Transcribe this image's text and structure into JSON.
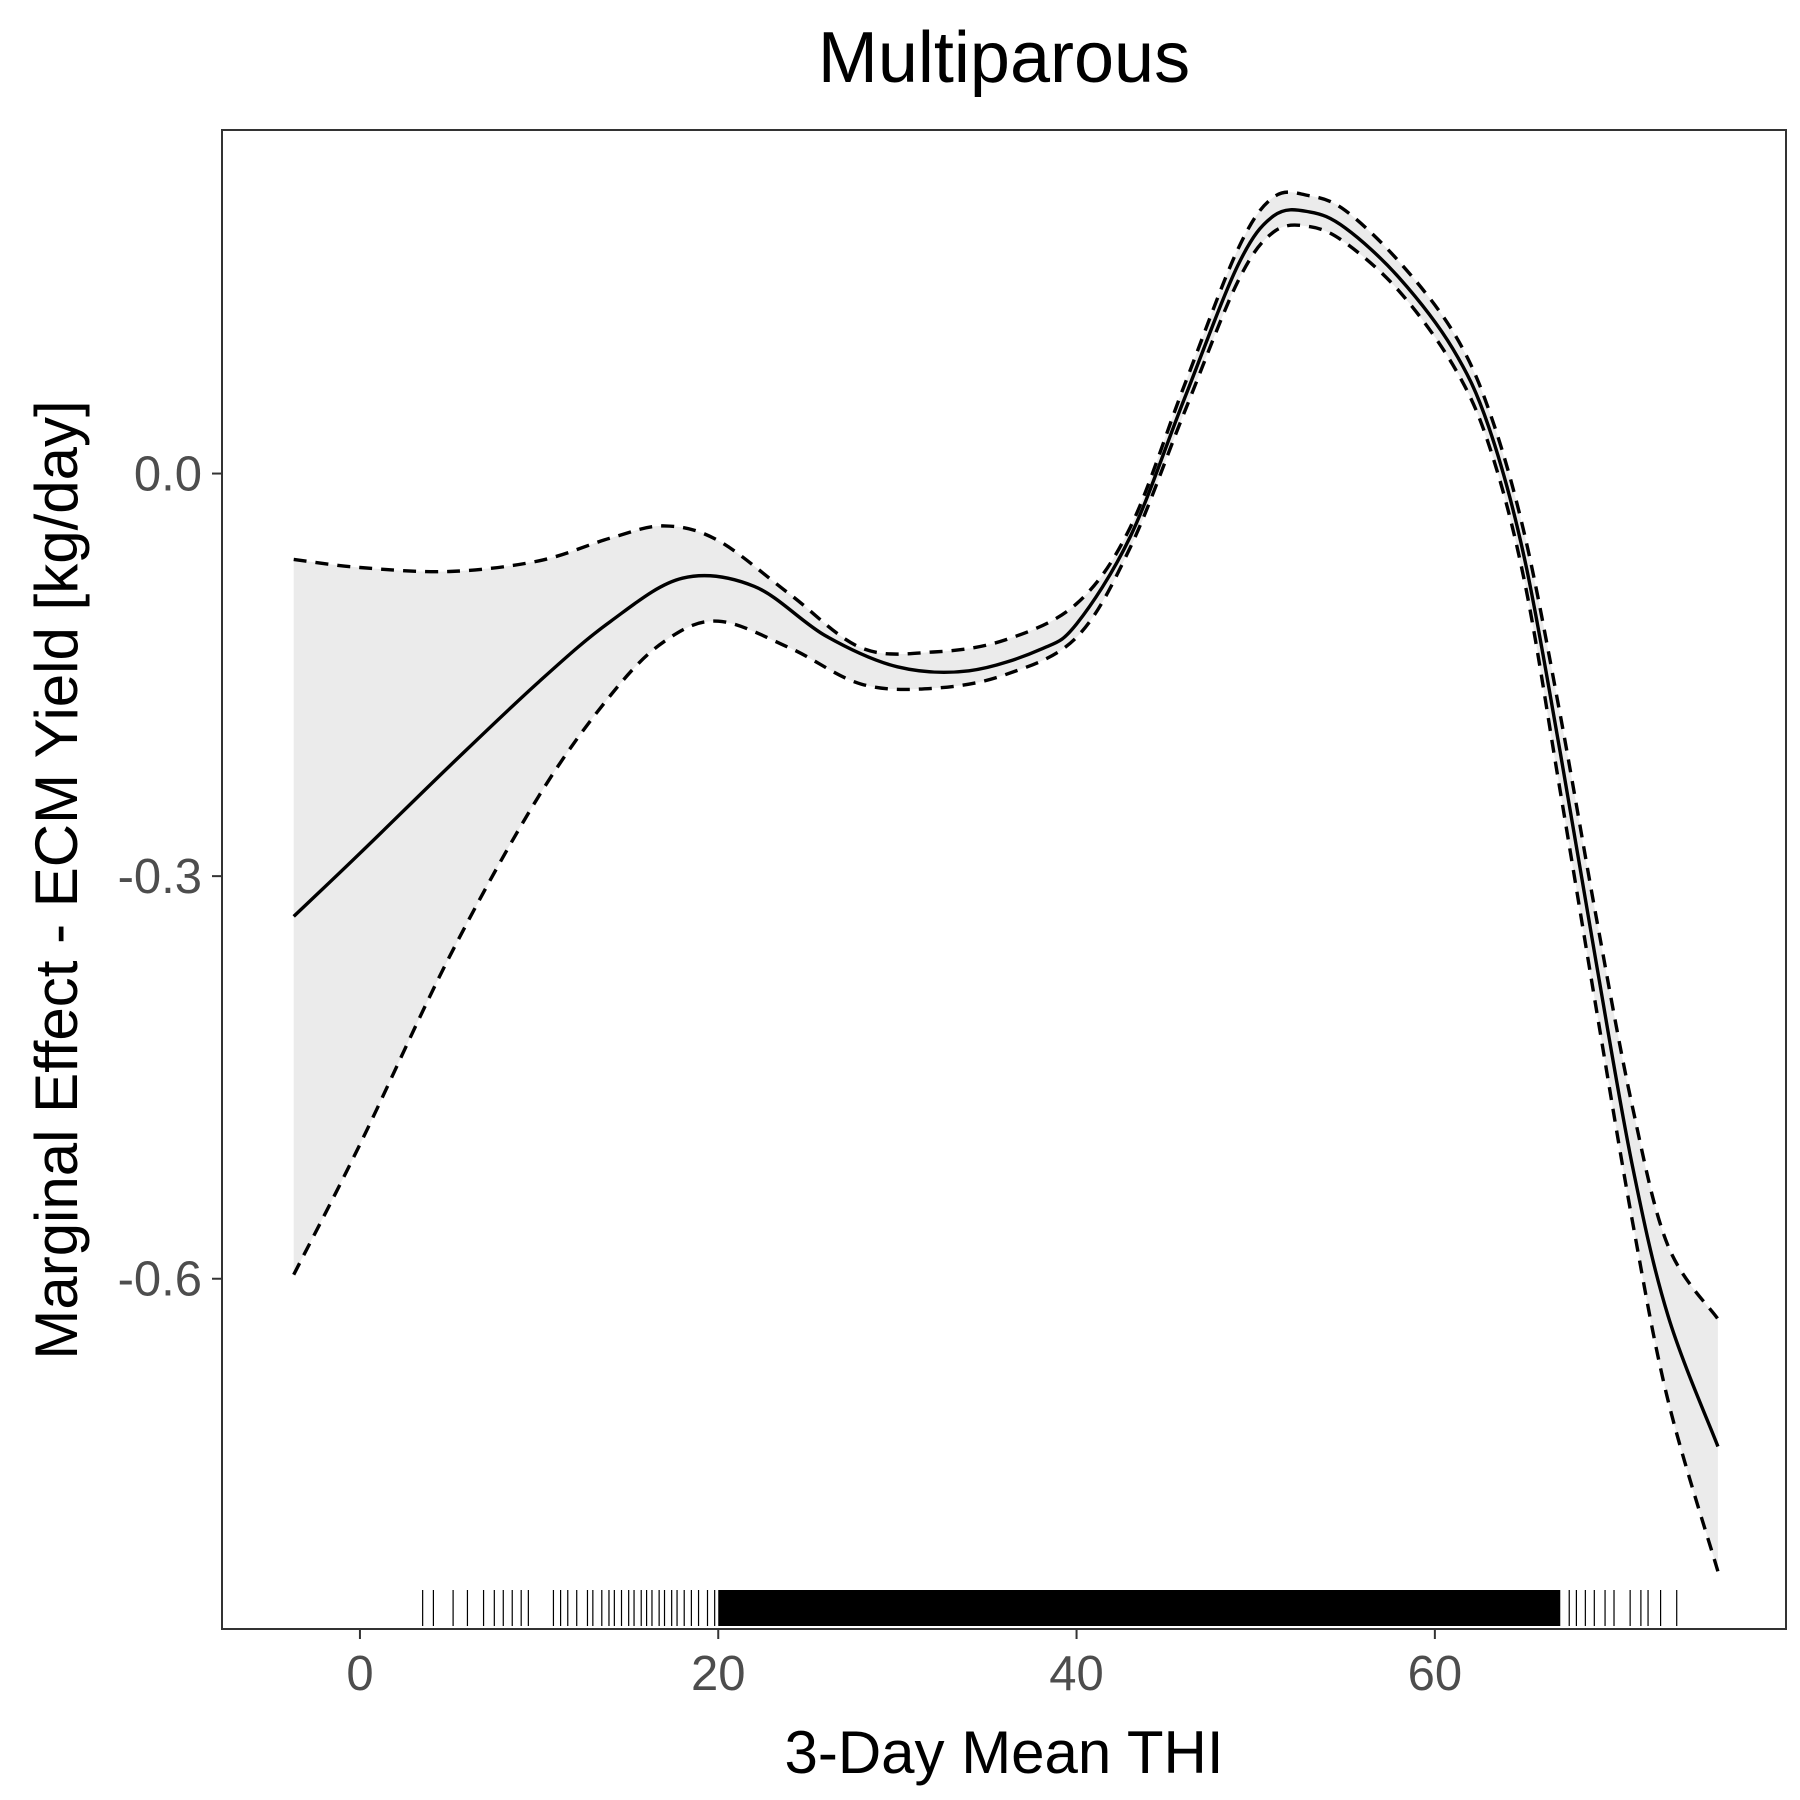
{
  "chart_data": {
    "type": "line",
    "title": "Multiparous",
    "xlabel": "3-Day Mean THI",
    "ylabel": "Marginal Effect - ECM Yield [kg/day]",
    "xlim": [
      -7.7,
      79.6
    ],
    "ylim": [
      -0.861,
      0.256
    ],
    "x_ticks": [
      0,
      20,
      40,
      60
    ],
    "x_tick_labels": [
      "0",
      "20",
      "40",
      "60"
    ],
    "y_ticks": [
      0.0,
      -0.3,
      -0.6
    ],
    "y_tick_labels": [
      "0.0",
      "-0.3",
      "-0.6"
    ],
    "grid": false,
    "legend": "none",
    "colors": {
      "line": "#000000",
      "band": "#ebebeb",
      "panel_border": "#333333",
      "tick_text": "#4d4d4d"
    },
    "series": [
      {
        "style": "solid",
        "x": [
          -3.7,
          0,
          5,
          10,
          14,
          18,
          22,
          26,
          30,
          34,
          38,
          40,
          43,
          46,
          49,
          51,
          53,
          55,
          58,
          61,
          63,
          65,
          67,
          69,
          71,
          73,
          75.8
        ],
        "y": [
          -0.33,
          -0.283,
          -0.218,
          -0.155,
          -0.11,
          -0.078,
          -0.084,
          -0.121,
          -0.144,
          -0.147,
          -0.131,
          -0.112,
          -0.047,
          0.055,
          0.155,
          0.192,
          0.195,
          0.183,
          0.146,
          0.093,
          0.035,
          -0.063,
          -0.208,
          -0.364,
          -0.514,
          -0.627,
          -0.725
        ]
      },
      {
        "style": "dashed",
        "name": "upper",
        "x": [
          -3.7,
          0,
          5,
          10,
          14,
          17,
          20,
          24,
          28,
          32,
          36,
          40,
          43,
          46,
          49,
          51,
          53,
          55,
          58,
          61,
          63,
          65,
          67,
          69,
          71,
          73,
          75.8
        ],
        "y": [
          -0.064,
          -0.07,
          -0.073,
          -0.065,
          -0.048,
          -0.039,
          -0.05,
          -0.09,
          -0.13,
          -0.133,
          -0.124,
          -0.097,
          -0.04,
          0.065,
          0.167,
          0.206,
          0.207,
          0.196,
          0.158,
          0.106,
          0.048,
          -0.045,
          -0.18,
          -0.33,
          -0.47,
          -0.575,
          -0.63
        ]
      },
      {
        "style": "dashed",
        "name": "lower",
        "x": [
          -3.7,
          0,
          5,
          10,
          14,
          17,
          20,
          24,
          28,
          32,
          36,
          40,
          43,
          46,
          49,
          51,
          53,
          55,
          58,
          61,
          63,
          65,
          67,
          69,
          71,
          73,
          75.8
        ],
        "y": [
          -0.597,
          -0.5,
          -0.36,
          -0.24,
          -0.165,
          -0.125,
          -0.11,
          -0.13,
          -0.157,
          -0.16,
          -0.15,
          -0.122,
          -0.055,
          0.045,
          0.143,
          0.18,
          0.184,
          0.172,
          0.136,
          0.081,
          0.022,
          -0.08,
          -0.237,
          -0.398,
          -0.555,
          -0.69,
          -0.818
        ]
      }
    ],
    "rug": {
      "sparse": [
        3.5,
        4.1,
        5.2,
        6.0,
        6.9,
        7.5,
        8.0,
        8.5,
        9.0,
        9.4,
        10.8,
        11.2,
        11.6,
        12.1,
        12.7,
        13.0,
        13.5,
        13.9,
        14.2,
        14.6,
        15.0,
        15.3,
        15.7,
        16.0,
        16.3,
        16.7,
        17.0,
        17.4,
        17.7,
        18.1,
        18.5,
        18.9,
        19.4,
        19.8,
        67.5,
        67.9,
        68.4,
        68.9,
        69.5,
        70.0,
        70.9,
        71.5,
        71.9,
        72.6,
        73.5
      ],
      "dense_range": [
        20,
        67
      ]
    }
  }
}
